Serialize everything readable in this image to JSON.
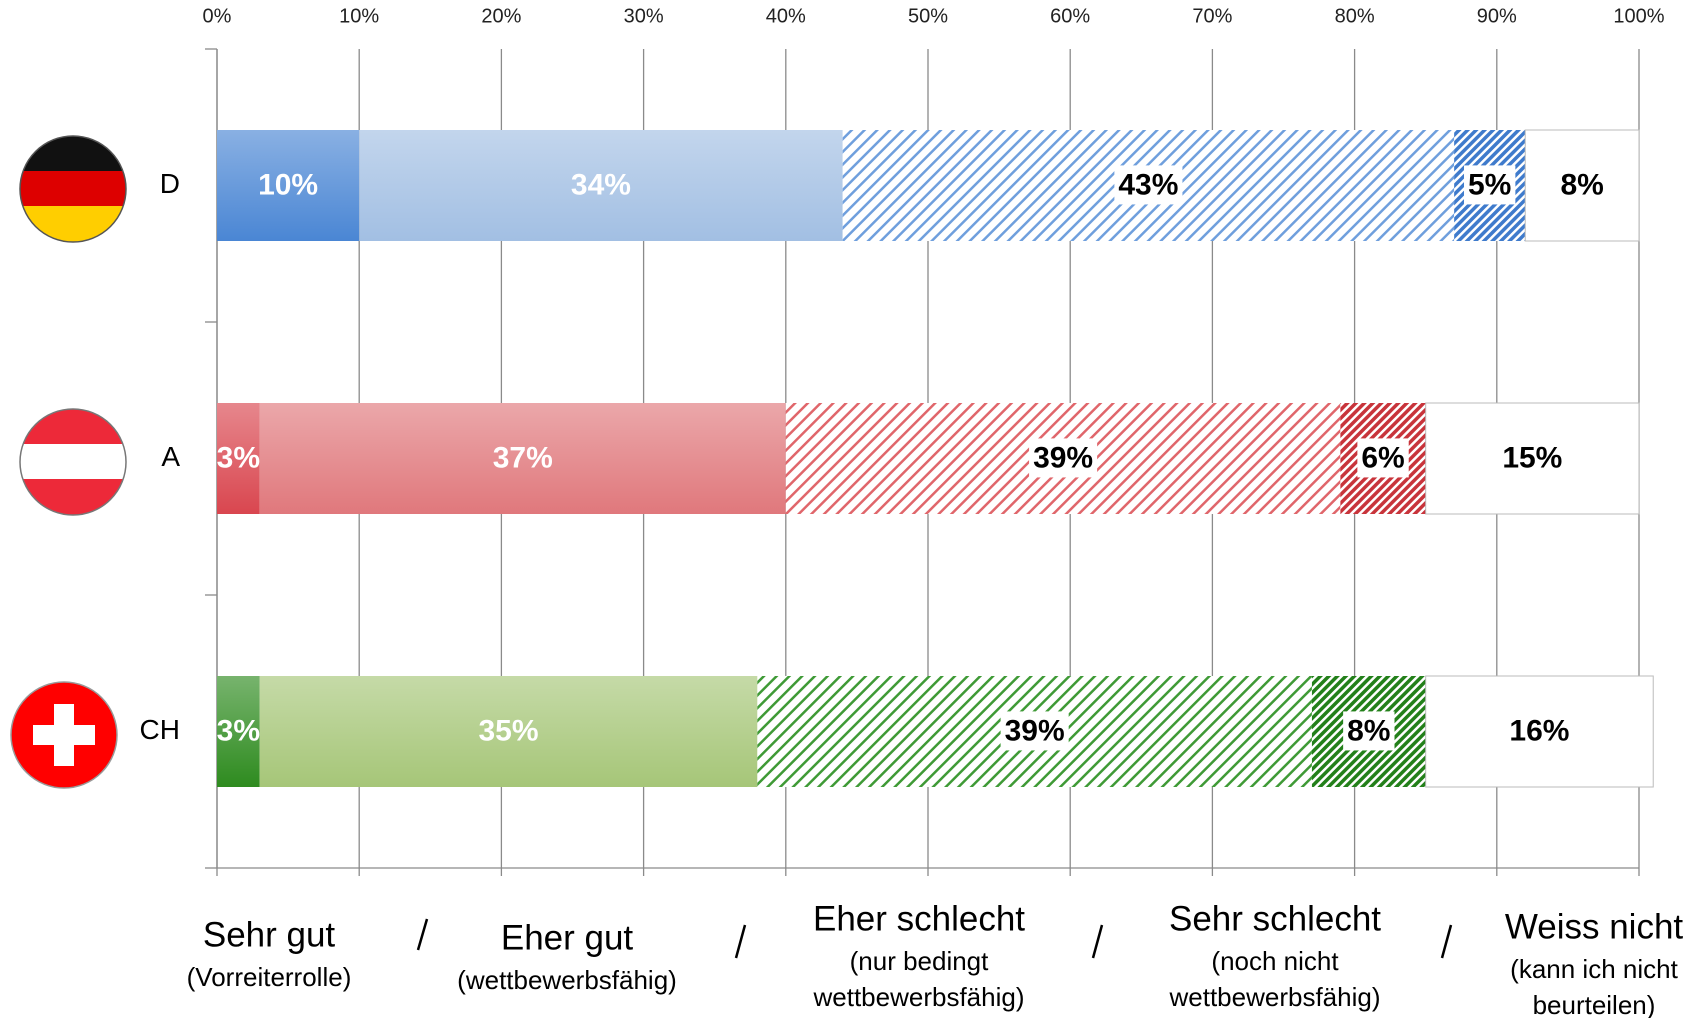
{
  "chart_data": {
    "type": "stacked_bar_horizontal",
    "categories": [
      "D",
      "A",
      "CH"
    ],
    "series": [
      {
        "name": "Sehr gut",
        "description": [
          "(Vorreiterrolle)"
        ],
        "colors": [
          "#4a86d4",
          "#d9464f",
          "#2e8b1f"
        ],
        "values": [
          10,
          3,
          3
        ],
        "value_labels": [
          "10%",
          "3%",
          "3%"
        ]
      },
      {
        "name": "Eher gut",
        "description": [
          "(wettbewerbsfähig)"
        ],
        "colors": [
          "#a2bfe3",
          "#e0787c",
          "#a6c678"
        ],
        "values": [
          34,
          37,
          35
        ],
        "value_labels": [
          "34%",
          "37%",
          "35%"
        ]
      },
      {
        "name": "Eher schlecht",
        "description": [
          "(nur bedingt",
          "wettbewerbsfähig)"
        ],
        "colors": [
          "#6f9fdd",
          "#e0666b",
          "#3f9a36"
        ],
        "hatch": "sparse",
        "values": [
          43,
          39,
          39
        ],
        "value_labels": [
          "43%",
          "39%",
          "39%"
        ]
      },
      {
        "name": "Sehr schlecht",
        "description": [
          "(noch nicht",
          "wettbewerbsfähig)"
        ],
        "colors": [
          "#3f7bcc",
          "#c8343b",
          "#23801a"
        ],
        "hatch": "dense",
        "values": [
          5,
          6,
          8
        ],
        "value_labels": [
          "5%",
          "6%",
          "8%"
        ]
      },
      {
        "name": "Weiss nicht",
        "description": [
          "(kann ich nicht",
          "beurteilen)"
        ],
        "colors": [
          "#ffffff",
          "#ffffff",
          "#ffffff"
        ],
        "values": [
          8,
          15,
          16
        ],
        "value_labels": [
          "8%",
          "15%",
          "16%"
        ]
      }
    ],
    "xlim": [
      0,
      100
    ],
    "xticks": [
      {
        "value": 0,
        "label": "0%"
      },
      {
        "value": 10,
        "label": "10%"
      },
      {
        "value": 20,
        "label": "20%"
      },
      {
        "value": 30,
        "label": "30%"
      },
      {
        "value": 40,
        "label": "40%"
      },
      {
        "value": 50,
        "label": "50%"
      },
      {
        "value": 60,
        "label": "60%"
      },
      {
        "value": 70,
        "label": "70%"
      },
      {
        "value": 80,
        "label": "80%"
      },
      {
        "value": 90,
        "label": "90%"
      },
      {
        "value": 100,
        "label": "100%"
      }
    ],
    "grid": true
  }
}
